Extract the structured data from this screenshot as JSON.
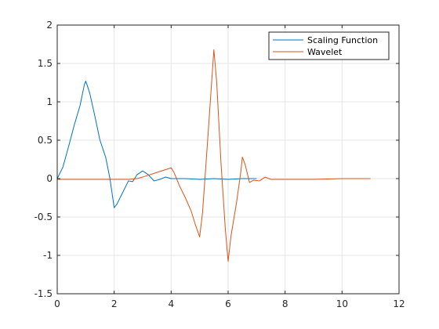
{
  "chart_data": {
    "type": "line",
    "title": "",
    "xlabel": "",
    "ylabel": "",
    "xlim": [
      0,
      12
    ],
    "ylim": [
      -1.5,
      2
    ],
    "xticks": [
      0,
      2,
      4,
      6,
      8,
      10,
      12
    ],
    "xtick_labels": [
      "0",
      "2",
      "4",
      "6",
      "8",
      "10",
      "12"
    ],
    "yticks": [
      -1.5,
      -1,
      -0.5,
      0,
      0.5,
      1,
      1.5,
      2
    ],
    "ytick_labels": [
      "-1.5",
      "-1",
      "-0.5",
      "0",
      "0.5",
      "1",
      "1.5",
      "2"
    ],
    "grid": true,
    "legend_position": "top-right",
    "series": [
      {
        "name": "Scaling Function",
        "color": "#0072BD",
        "points": [
          [
            0,
            0
          ],
          [
            0.2,
            0.15
          ],
          [
            0.4,
            0.42
          ],
          [
            0.6,
            0.7
          ],
          [
            0.8,
            0.95
          ],
          [
            0.95,
            1.22
          ],
          [
            1.0,
            1.27
          ],
          [
            1.05,
            1.22
          ],
          [
            1.15,
            1.1
          ],
          [
            1.3,
            0.85
          ],
          [
            1.5,
            0.5
          ],
          [
            1.7,
            0.28
          ],
          [
            1.85,
            0.0
          ],
          [
            2.0,
            -0.38
          ],
          [
            2.1,
            -0.33
          ],
          [
            2.3,
            -0.18
          ],
          [
            2.5,
            -0.03
          ],
          [
            2.65,
            -0.04
          ],
          [
            2.8,
            0.05
          ],
          [
            3.0,
            0.1
          ],
          [
            3.2,
            0.05
          ],
          [
            3.4,
            -0.03
          ],
          [
            3.6,
            -0.01
          ],
          [
            3.8,
            0.02
          ],
          [
            4.0,
            0.0
          ],
          [
            4.5,
            0.0
          ],
          [
            5.0,
            -0.01
          ],
          [
            5.5,
            0.0
          ],
          [
            6.0,
            -0.01
          ],
          [
            6.5,
            0.0
          ],
          [
            7.0,
            0.0
          ]
        ]
      },
      {
        "name": "Wavelet",
        "color": "#D95319",
        "points": [
          [
            0,
            -0.01
          ],
          [
            1.0,
            -0.01
          ],
          [
            2.0,
            -0.01
          ],
          [
            2.5,
            -0.01
          ],
          [
            2.8,
            0.0
          ],
          [
            3.0,
            0.02
          ],
          [
            3.5,
            0.08
          ],
          [
            4.0,
            0.14
          ],
          [
            4.1,
            0.08
          ],
          [
            4.3,
            -0.1
          ],
          [
            4.5,
            -0.25
          ],
          [
            4.7,
            -0.42
          ],
          [
            4.85,
            -0.6
          ],
          [
            5.0,
            -0.76
          ],
          [
            5.1,
            -0.45
          ],
          [
            5.3,
            0.6
          ],
          [
            5.5,
            1.68
          ],
          [
            5.6,
            1.25
          ],
          [
            5.75,
            0.2
          ],
          [
            5.9,
            -0.65
          ],
          [
            6.0,
            -1.08
          ],
          [
            6.1,
            -0.75
          ],
          [
            6.3,
            -0.3
          ],
          [
            6.45,
            0.1
          ],
          [
            6.5,
            0.28
          ],
          [
            6.6,
            0.18
          ],
          [
            6.75,
            -0.05
          ],
          [
            6.9,
            -0.02
          ],
          [
            7.1,
            -0.03
          ],
          [
            7.3,
            0.02
          ],
          [
            7.5,
            -0.01
          ],
          [
            8.0,
            -0.01
          ],
          [
            9.0,
            -0.01
          ],
          [
            10.0,
            0.0
          ],
          [
            11.0,
            0.0
          ]
        ]
      }
    ]
  }
}
